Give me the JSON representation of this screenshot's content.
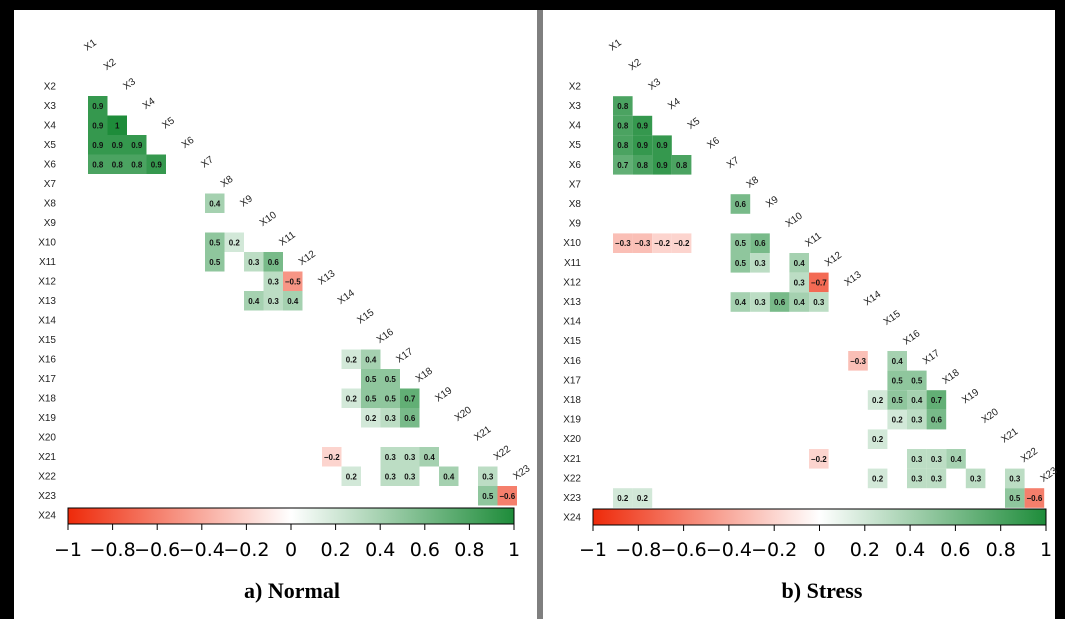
{
  "chart_data": [
    {
      "type": "heatmap",
      "caption": "a) Normal",
      "variables": [
        "X1",
        "X2",
        "X3",
        "X4",
        "X5",
        "X6",
        "X7",
        "X8",
        "X9",
        "X10",
        "X11",
        "X12",
        "X13",
        "X14",
        "X15",
        "X16",
        "X17",
        "X18",
        "X19",
        "X20",
        "X21",
        "X22",
        "X23",
        "X24"
      ],
      "cells": [
        [
          "X3",
          "X1",
          0.9
        ],
        [
          "X4",
          "X1",
          0.9
        ],
        [
          "X4",
          "X2",
          1
        ],
        [
          "X5",
          "X1",
          0.9
        ],
        [
          "X5",
          "X2",
          0.9
        ],
        [
          "X5",
          "X3",
          0.9
        ],
        [
          "X6",
          "X1",
          0.8
        ],
        [
          "X6",
          "X2",
          0.8
        ],
        [
          "X6",
          "X3",
          0.8
        ],
        [
          "X6",
          "X4",
          0.9
        ],
        [
          "X8",
          "X7",
          0.4
        ],
        [
          "X10",
          "X7",
          0.5
        ],
        [
          "X10",
          "X8",
          0.2
        ],
        [
          "X11",
          "X7",
          0.5
        ],
        [
          "X11",
          "X9",
          0.3
        ],
        [
          "X11",
          "X10",
          0.6
        ],
        [
          "X12",
          "X10",
          0.3
        ],
        [
          "X12",
          "X11",
          -0.5
        ],
        [
          "X13",
          "X9",
          0.4
        ],
        [
          "X13",
          "X10",
          0.3
        ],
        [
          "X13",
          "X11",
          0.4
        ],
        [
          "X16",
          "X14",
          0.2
        ],
        [
          "X16",
          "X15",
          0.4
        ],
        [
          "X17",
          "X15",
          0.5
        ],
        [
          "X17",
          "X16",
          0.5
        ],
        [
          "X18",
          "X14",
          0.2
        ],
        [
          "X18",
          "X15",
          0.5
        ],
        [
          "X18",
          "X16",
          0.5
        ],
        [
          "X18",
          "X17",
          0.7
        ],
        [
          "X19",
          "X15",
          0.2
        ],
        [
          "X19",
          "X16",
          0.3
        ],
        [
          "X19",
          "X17",
          0.6
        ],
        [
          "X21",
          "X13",
          -0.2
        ],
        [
          "X21",
          "X16",
          0.3
        ],
        [
          "X21",
          "X17",
          0.3
        ],
        [
          "X21",
          "X18",
          0.4
        ],
        [
          "X22",
          "X14",
          0.2
        ],
        [
          "X22",
          "X16",
          0.3
        ],
        [
          "X22",
          "X17",
          0.3
        ],
        [
          "X22",
          "X19",
          0.4
        ],
        [
          "X22",
          "X21",
          0.3
        ],
        [
          "X23",
          "X21",
          0.5
        ],
        [
          "X23",
          "X22",
          -0.6
        ]
      ],
      "colorbar": {
        "range": [
          -1,
          1
        ],
        "ticks": [
          "−1",
          "−0.8",
          "−0.6",
          "−0.4",
          "−0.2",
          "0",
          "0.2",
          "0.4",
          "0.6",
          "0.8",
          "1"
        ],
        "ticks_values": [
          -1,
          -0.8,
          -0.6,
          -0.4,
          -0.2,
          0,
          0.2,
          0.4,
          0.6,
          0.8,
          1
        ],
        "low_color": "#ee2a0a",
        "mid_color": "#ffffff",
        "high_color": "#1e8c3a"
      }
    },
    {
      "type": "heatmap",
      "caption": "b) Stress",
      "variables": [
        "X1",
        "X2",
        "X3",
        "X4",
        "X5",
        "X6",
        "X7",
        "X8",
        "X9",
        "X10",
        "X11",
        "X12",
        "X13",
        "X14",
        "X15",
        "X16",
        "X17",
        "X18",
        "X19",
        "X20",
        "X21",
        "X22",
        "X23",
        "X24"
      ],
      "cells": [
        [
          "X3",
          "X1",
          0.8
        ],
        [
          "X4",
          "X1",
          0.8
        ],
        [
          "X4",
          "X2",
          0.9
        ],
        [
          "X5",
          "X1",
          0.8
        ],
        [
          "X5",
          "X2",
          0.9
        ],
        [
          "X5",
          "X3",
          0.9
        ],
        [
          "X6",
          "X1",
          0.7
        ],
        [
          "X6",
          "X2",
          0.8
        ],
        [
          "X6",
          "X3",
          0.9
        ],
        [
          "X6",
          "X4",
          0.8
        ],
        [
          "X8",
          "X7",
          0.6
        ],
        [
          "X10",
          "X1",
          -0.3
        ],
        [
          "X10",
          "X2",
          -0.3
        ],
        [
          "X10",
          "X3",
          -0.2
        ],
        [
          "X10",
          "X4",
          -0.2
        ],
        [
          "X10",
          "X7",
          0.5
        ],
        [
          "X10",
          "X8",
          0.6
        ],
        [
          "X11",
          "X7",
          0.5
        ],
        [
          "X11",
          "X8",
          0.3
        ],
        [
          "X11",
          "X10",
          0.4
        ],
        [
          "X12",
          "X10",
          0.3
        ],
        [
          "X12",
          "X11",
          -0.7
        ],
        [
          "X13",
          "X7",
          0.4
        ],
        [
          "X13",
          "X8",
          0.3
        ],
        [
          "X13",
          "X9",
          0.6
        ],
        [
          "X13",
          "X10",
          0.4
        ],
        [
          "X13",
          "X11",
          0.3
        ],
        [
          "X16",
          "X13",
          -0.3
        ],
        [
          "X16",
          "X15",
          0.4
        ],
        [
          "X17",
          "X15",
          0.5
        ],
        [
          "X17",
          "X16",
          0.5
        ],
        [
          "X18",
          "X14",
          0.2
        ],
        [
          "X18",
          "X15",
          0.5
        ],
        [
          "X18",
          "X16",
          0.4
        ],
        [
          "X18",
          "X17",
          0.7
        ],
        [
          "X19",
          "X15",
          0.2
        ],
        [
          "X19",
          "X16",
          0.3
        ],
        [
          "X19",
          "X17",
          0.6
        ],
        [
          "X20",
          "X14",
          0.2
        ],
        [
          "X21",
          "X11",
          -0.2
        ],
        [
          "X21",
          "X16",
          0.3
        ],
        [
          "X21",
          "X17",
          0.3
        ],
        [
          "X21",
          "X18",
          0.4
        ],
        [
          "X22",
          "X14",
          0.2
        ],
        [
          "X22",
          "X16",
          0.3
        ],
        [
          "X22",
          "X17",
          0.3
        ],
        [
          "X22",
          "X19",
          0.3
        ],
        [
          "X22",
          "X21",
          0.3
        ],
        [
          "X23",
          "X1",
          0.2
        ],
        [
          "X23",
          "X2",
          0.2
        ],
        [
          "X23",
          "X21",
          0.5
        ],
        [
          "X23",
          "X22",
          -0.6
        ]
      ],
      "colorbar": {
        "range": [
          -1,
          1
        ],
        "ticks": [
          "−1",
          "−0.8",
          "−0.6",
          "−0.4",
          "−0.2",
          "0",
          "0.2",
          "0.4",
          "0.6",
          "0.8",
          "1"
        ],
        "ticks_values": [
          -1,
          -0.8,
          -0.6,
          -0.4,
          -0.2,
          0,
          0.2,
          0.4,
          0.6,
          0.8,
          1
        ],
        "low_color": "#ee2a0a",
        "mid_color": "#ffffff",
        "high_color": "#1e8c3a"
      }
    }
  ]
}
